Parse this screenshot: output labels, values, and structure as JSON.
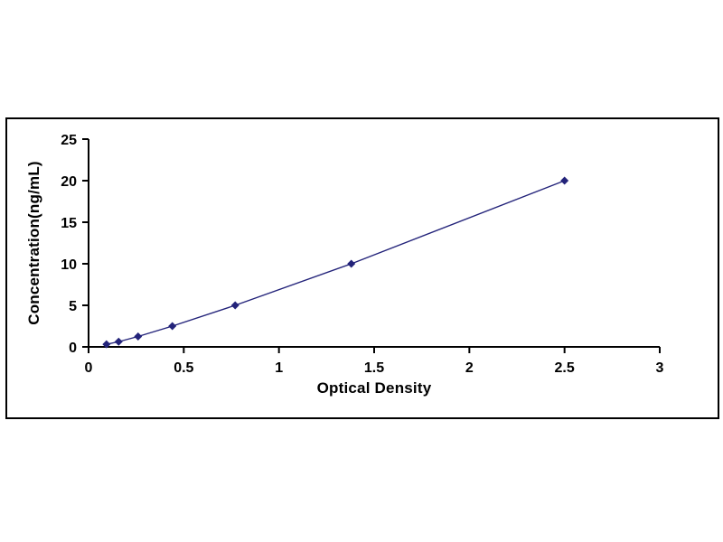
{
  "chart_data": {
    "type": "line",
    "title": "",
    "xlabel": "Optical Density",
    "ylabel": "Concentration(ng/mL)",
    "x": [
      0.094,
      0.158,
      0.26,
      0.44,
      0.77,
      1.38,
      2.5
    ],
    "y": [
      0.312,
      0.625,
      1.25,
      2.5,
      5,
      10,
      20
    ],
    "xlim": [
      0,
      3
    ],
    "ylim": [
      0,
      25
    ],
    "xticks": [
      0,
      0.5,
      1,
      1.5,
      2,
      2.5,
      3
    ],
    "yticks": [
      0,
      5,
      10,
      15,
      20,
      25
    ],
    "grid": false,
    "legend_position": "none",
    "line_color": "#23237a",
    "marker": "diamond",
    "marker_color": "#23237a",
    "axis_color": "#000000",
    "background_color": "#ffffff"
  }
}
